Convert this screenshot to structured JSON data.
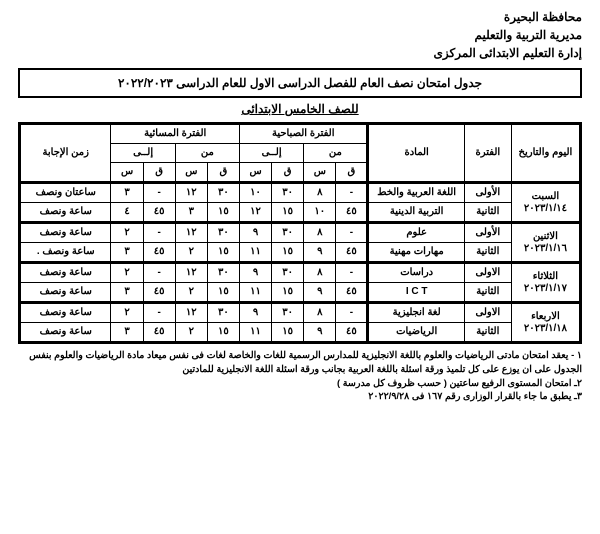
{
  "header": {
    "line1": "محافظة البحيرة",
    "line2": "مديرية التربية والتعليم",
    "line3": "إدارة التعليم الابتدائى المركزى"
  },
  "title": "جدول امتحان نصف العام للفصل الدراسى الاول للعام الدراسى ٢٠٢٢/٢٠٢٣",
  "subtitle": "للصف الخامس الابتدائى",
  "colHeads": {
    "dayDate": "اليوم والتاريخ",
    "period": "الفترة",
    "subject": "المادة",
    "morning": "الفترة الصباحية",
    "evening": "الفترة المسائية",
    "from": "من",
    "to": "إلــى",
    "h": "س",
    "m": "ق",
    "duration": "زمن الإجابة"
  },
  "rows": [
    {
      "day": "السبت",
      "date": "٢٠٢٣/١/١٤",
      "p1": "الأولى",
      "s1": "اللغة العربية والخط",
      "mf1h": "-",
      "mf1m": "٨",
      "mt1h": "٣٠",
      "mt1m": "١٠",
      "ef1h": "٣٠",
      "ef1m": "١٢",
      "et1h": "-",
      "et1m": "٣",
      "d1": "ساعتان ونصف",
      "p2": "الثانية",
      "s2": "التربية الدينية",
      "mf2h": "٤٥",
      "mf2m": "١٠",
      "mt2h": "١٥",
      "mt2m": "١٢",
      "ef2h": "١٥",
      "ef2m": "٣",
      "et2h": "٤٥",
      "et2m": "٤",
      "d2": "ساعة ونصف"
    },
    {
      "day": "الاثنين",
      "date": "٢٠٢٣/١/١٦",
      "p1": "الأولى",
      "s1": "علوم",
      "mf1h": "-",
      "mf1m": "٨",
      "mt1h": "٣٠",
      "mt1m": "٩",
      "ef1h": "٣٠",
      "ef1m": "١٢",
      "et1h": "-",
      "et1m": "٢",
      "d1": "ساعة ونصف",
      "p2": "الثانية",
      "s2": "مهارات مهنية",
      "mf2h": "٤٥",
      "mf2m": "٩",
      "mt2h": "١٥",
      "mt2m": "١١",
      "ef2h": "١٥",
      "ef2m": "٢",
      "et2h": "٤٥",
      "et2m": "٣",
      "d2": "ساعة ونصف ."
    },
    {
      "day": "الثلاثاء",
      "date": "٢٠٢٣/١/١٧",
      "p1": "الاولى",
      "s1": "دراسات",
      "mf1h": "-",
      "mf1m": "٨",
      "mt1h": "٣٠",
      "mt1m": "٩",
      "ef1h": "٣٠",
      "ef1m": "١٢",
      "et1h": "-",
      "et1m": "٢",
      "d1": "ساعة ونصف",
      "p2": "الثانية",
      "s2": "I C T",
      "mf2h": "٤٥",
      "mf2m": "٩",
      "mt2h": "١٥",
      "mt2m": "١١",
      "ef2h": "١٥",
      "ef2m": "٢",
      "et2h": "٤٥",
      "et2m": "٣",
      "d2": "ساعة ونصف"
    },
    {
      "day": "الاربعاء",
      "date": "٢٠٢٣/١/١٨",
      "p1": "الاولى",
      "s1": "لغة انجليزية",
      "mf1h": "-",
      "mf1m": "٨",
      "mt1h": "٣٠",
      "mt1m": "٩",
      "ef1h": "٣٠",
      "ef1m": "١٢",
      "et1h": "-",
      "et1m": "٢",
      "d1": "ساعة ونصف",
      "p2": "الثانية",
      "s2": "الرياضيات",
      "mf2h": "٤٥",
      "mf2m": "٩",
      "mt2h": "١٥",
      "mt2m": "١١",
      "ef2h": "١٥",
      "ef2m": "٢",
      "et2h": "٤٥",
      "et2m": "٣",
      "d2": "ساعة ونصف"
    }
  ],
  "footnotes": {
    "n1": "١ - يعقد امتحان مادتى الرياضيات والعلوم باللغة الانجليزية للمدارس الرسمية للغات والخاصة لغات فى نفس ميعاد مادة الرياضيات والعلوم بنفس الجدول على ان يوزع على كل تلميذ ورقة اسئلة باللغة العربية بجانب ورقة اسئلة اللغة الانجليزية للمادتين",
    "n2": "٢ـ امتحان المستوى الرفيع ساعتين ( حسب ظروف كل مدرسة )",
    "n3": "٣ـ يطبق ما جاء بالقرار الوزارى رقم ١٦٧ فى ٢٠٢٢/٩/٢٨"
  }
}
